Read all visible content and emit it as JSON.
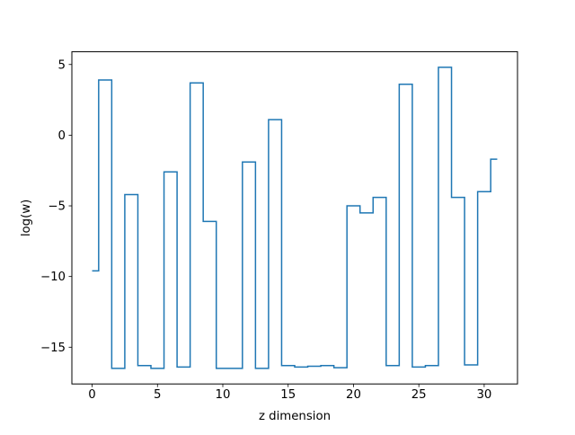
{
  "chart_data": {
    "type": "line",
    "step": "mid",
    "title": "",
    "xlabel": "z dimension",
    "ylabel": "log(w)",
    "xlim": [
      -1.55,
      32.55
    ],
    "ylim": [
      -17.6,
      5.9
    ],
    "xticks": [
      0,
      5,
      10,
      15,
      20,
      25,
      30
    ],
    "yticks": [
      5,
      0,
      -5,
      -10,
      -15
    ],
    "xtick_labels": [
      "0",
      "5",
      "10",
      "15",
      "20",
      "25",
      "30"
    ],
    "ytick_labels": [
      "5",
      "0",
      "−5",
      "−10",
      "−15"
    ],
    "grid": false,
    "series": [
      {
        "color": "#1f77b4",
        "x": [
          0,
          1,
          2,
          3,
          4,
          5,
          6,
          7,
          8,
          9,
          10,
          11,
          12,
          13,
          14,
          15,
          16,
          17,
          18,
          19,
          20,
          21,
          22,
          23,
          24,
          25,
          26,
          27,
          28,
          29,
          30,
          31
        ],
        "y": [
          -9.6,
          3.9,
          -16.5,
          -4.2,
          -16.3,
          -16.5,
          -2.6,
          -16.4,
          3.7,
          -6.1,
          -16.5,
          -16.5,
          -1.9,
          -16.5,
          1.1,
          -16.3,
          -16.4,
          -16.35,
          -16.3,
          -16.45,
          -5.0,
          -5.5,
          -4.4,
          -16.3,
          3.6,
          -16.4,
          -16.3,
          4.8,
          -4.4,
          -16.25,
          -4.0,
          -1.7
        ]
      }
    ]
  }
}
